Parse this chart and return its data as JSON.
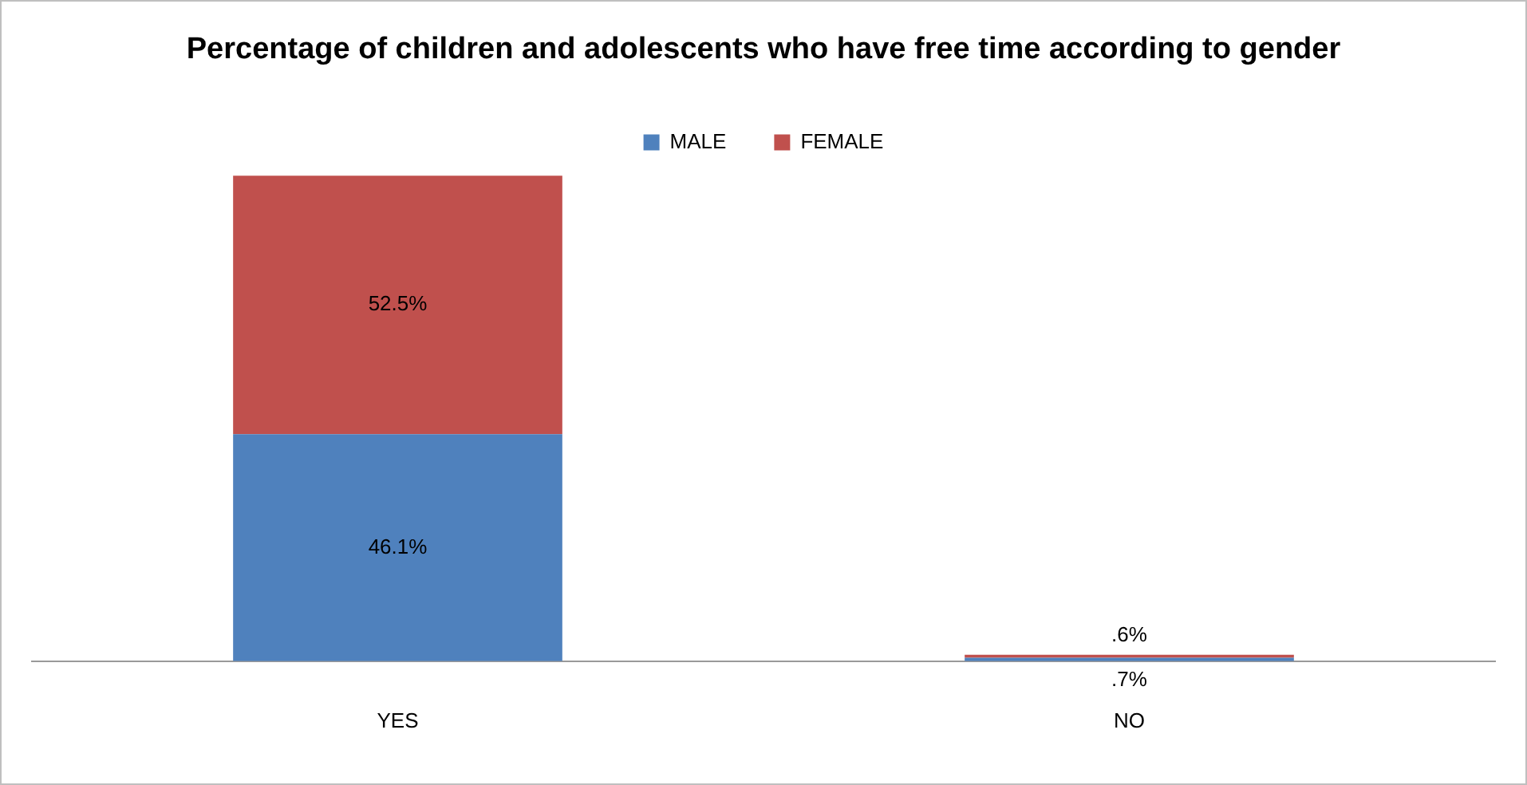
{
  "chart_data": {
    "type": "bar",
    "title": "Percentage of children and adolescents who have free time according to gender",
    "categories": [
      "YES",
      "NO"
    ],
    "stacked": true,
    "legend": "top",
    "grid": false,
    "series": [
      {
        "name": "MALE",
        "color": "#4f81bd",
        "values": [
          46.1,
          0.7
        ],
        "value_labels": [
          "46.1%",
          ".7%"
        ]
      },
      {
        "name": "FEMALE",
        "color": "#c0504d",
        "values": [
          52.5,
          0.6
        ],
        "value_labels": [
          "52.5%",
          ".6%"
        ]
      }
    ]
  }
}
